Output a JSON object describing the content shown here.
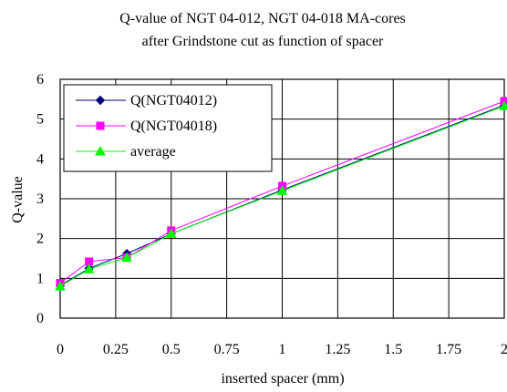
{
  "chart_data": {
    "type": "line",
    "title": [
      "Q-value of NGT 04-012, NGT 04-018 MA-cores",
      "after Grindstone cut as function of spacer"
    ],
    "xlabel": "inserted spacer (mm)",
    "ylabel": "Q-value",
    "xlim": [
      0,
      2
    ],
    "ylim": [
      0,
      6
    ],
    "xticks": [
      0,
      0.25,
      0.5,
      0.75,
      1,
      1.25,
      1.5,
      1.75,
      2
    ],
    "xtick_labels": [
      "0",
      "0.25",
      "0.5",
      "0.75",
      "1",
      "1.25",
      "1.5",
      "1.75",
      "2"
    ],
    "yticks": [
      0,
      1,
      2,
      3,
      4,
      5,
      6
    ],
    "ytick_labels": [
      "0",
      "1",
      "2",
      "3",
      "4",
      "5",
      "6"
    ],
    "grid": true,
    "legend_position": "top-left",
    "series": [
      {
        "name": "Q(NGT04012)",
        "color": "#000080",
        "marker": "diamond",
        "x": [
          0,
          0.13,
          0.3,
          0.5,
          1,
          2
        ],
        "y": [
          0.82,
          1.25,
          1.62,
          2.12,
          3.22,
          5.35
        ]
      },
      {
        "name": "Q(NGT04018)",
        "color": "#ff00ff",
        "marker": "square",
        "x": [
          0,
          0.13,
          0.3,
          0.5,
          1,
          2
        ],
        "y": [
          0.88,
          1.42,
          1.52,
          2.2,
          3.32,
          5.45
        ]
      },
      {
        "name": "average",
        "color": "#00ff00",
        "marker": "triangle",
        "x": [
          0,
          0.13,
          0.3,
          0.5,
          1,
          2
        ],
        "y": [
          0.8,
          1.23,
          1.52,
          2.12,
          3.2,
          5.33
        ]
      }
    ]
  }
}
